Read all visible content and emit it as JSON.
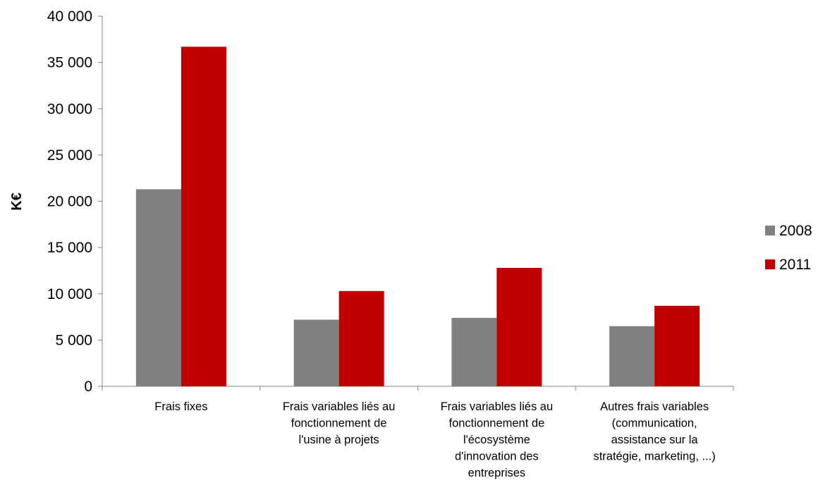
{
  "chart_data": {
    "type": "bar",
    "title": "",
    "xlabel": "",
    "ylabel": "K€",
    "ylim": [
      0,
      40000
    ],
    "yticks": [
      0,
      5000,
      10000,
      15000,
      20000,
      25000,
      30000,
      35000,
      40000
    ],
    "ytick_labels": [
      "0",
      "5 000",
      "10 000",
      "15 000",
      "20 000",
      "25 000",
      "30 000",
      "35 000",
      "40 000"
    ],
    "grid": false,
    "legend_position": "right",
    "categories": [
      [
        "Frais fixes"
      ],
      [
        "Frais variables liés au",
        "fonctionnement de",
        "l'usine à projets"
      ],
      [
        "Frais variables liés au",
        "fonctionnement de",
        "l'écosystème",
        "d'innovation des",
        "entreprises"
      ],
      [
        "Autres frais variables",
        "(communication,",
        "assistance sur la",
        "stratégie, marketing, ...)"
      ]
    ],
    "series": [
      {
        "name": "2008",
        "color": "#808080",
        "values": [
          21300,
          7200,
          7400,
          6500
        ]
      },
      {
        "name": "2011",
        "color": "#c00000",
        "values": [
          36700,
          10300,
          12800,
          8700
        ]
      }
    ]
  }
}
